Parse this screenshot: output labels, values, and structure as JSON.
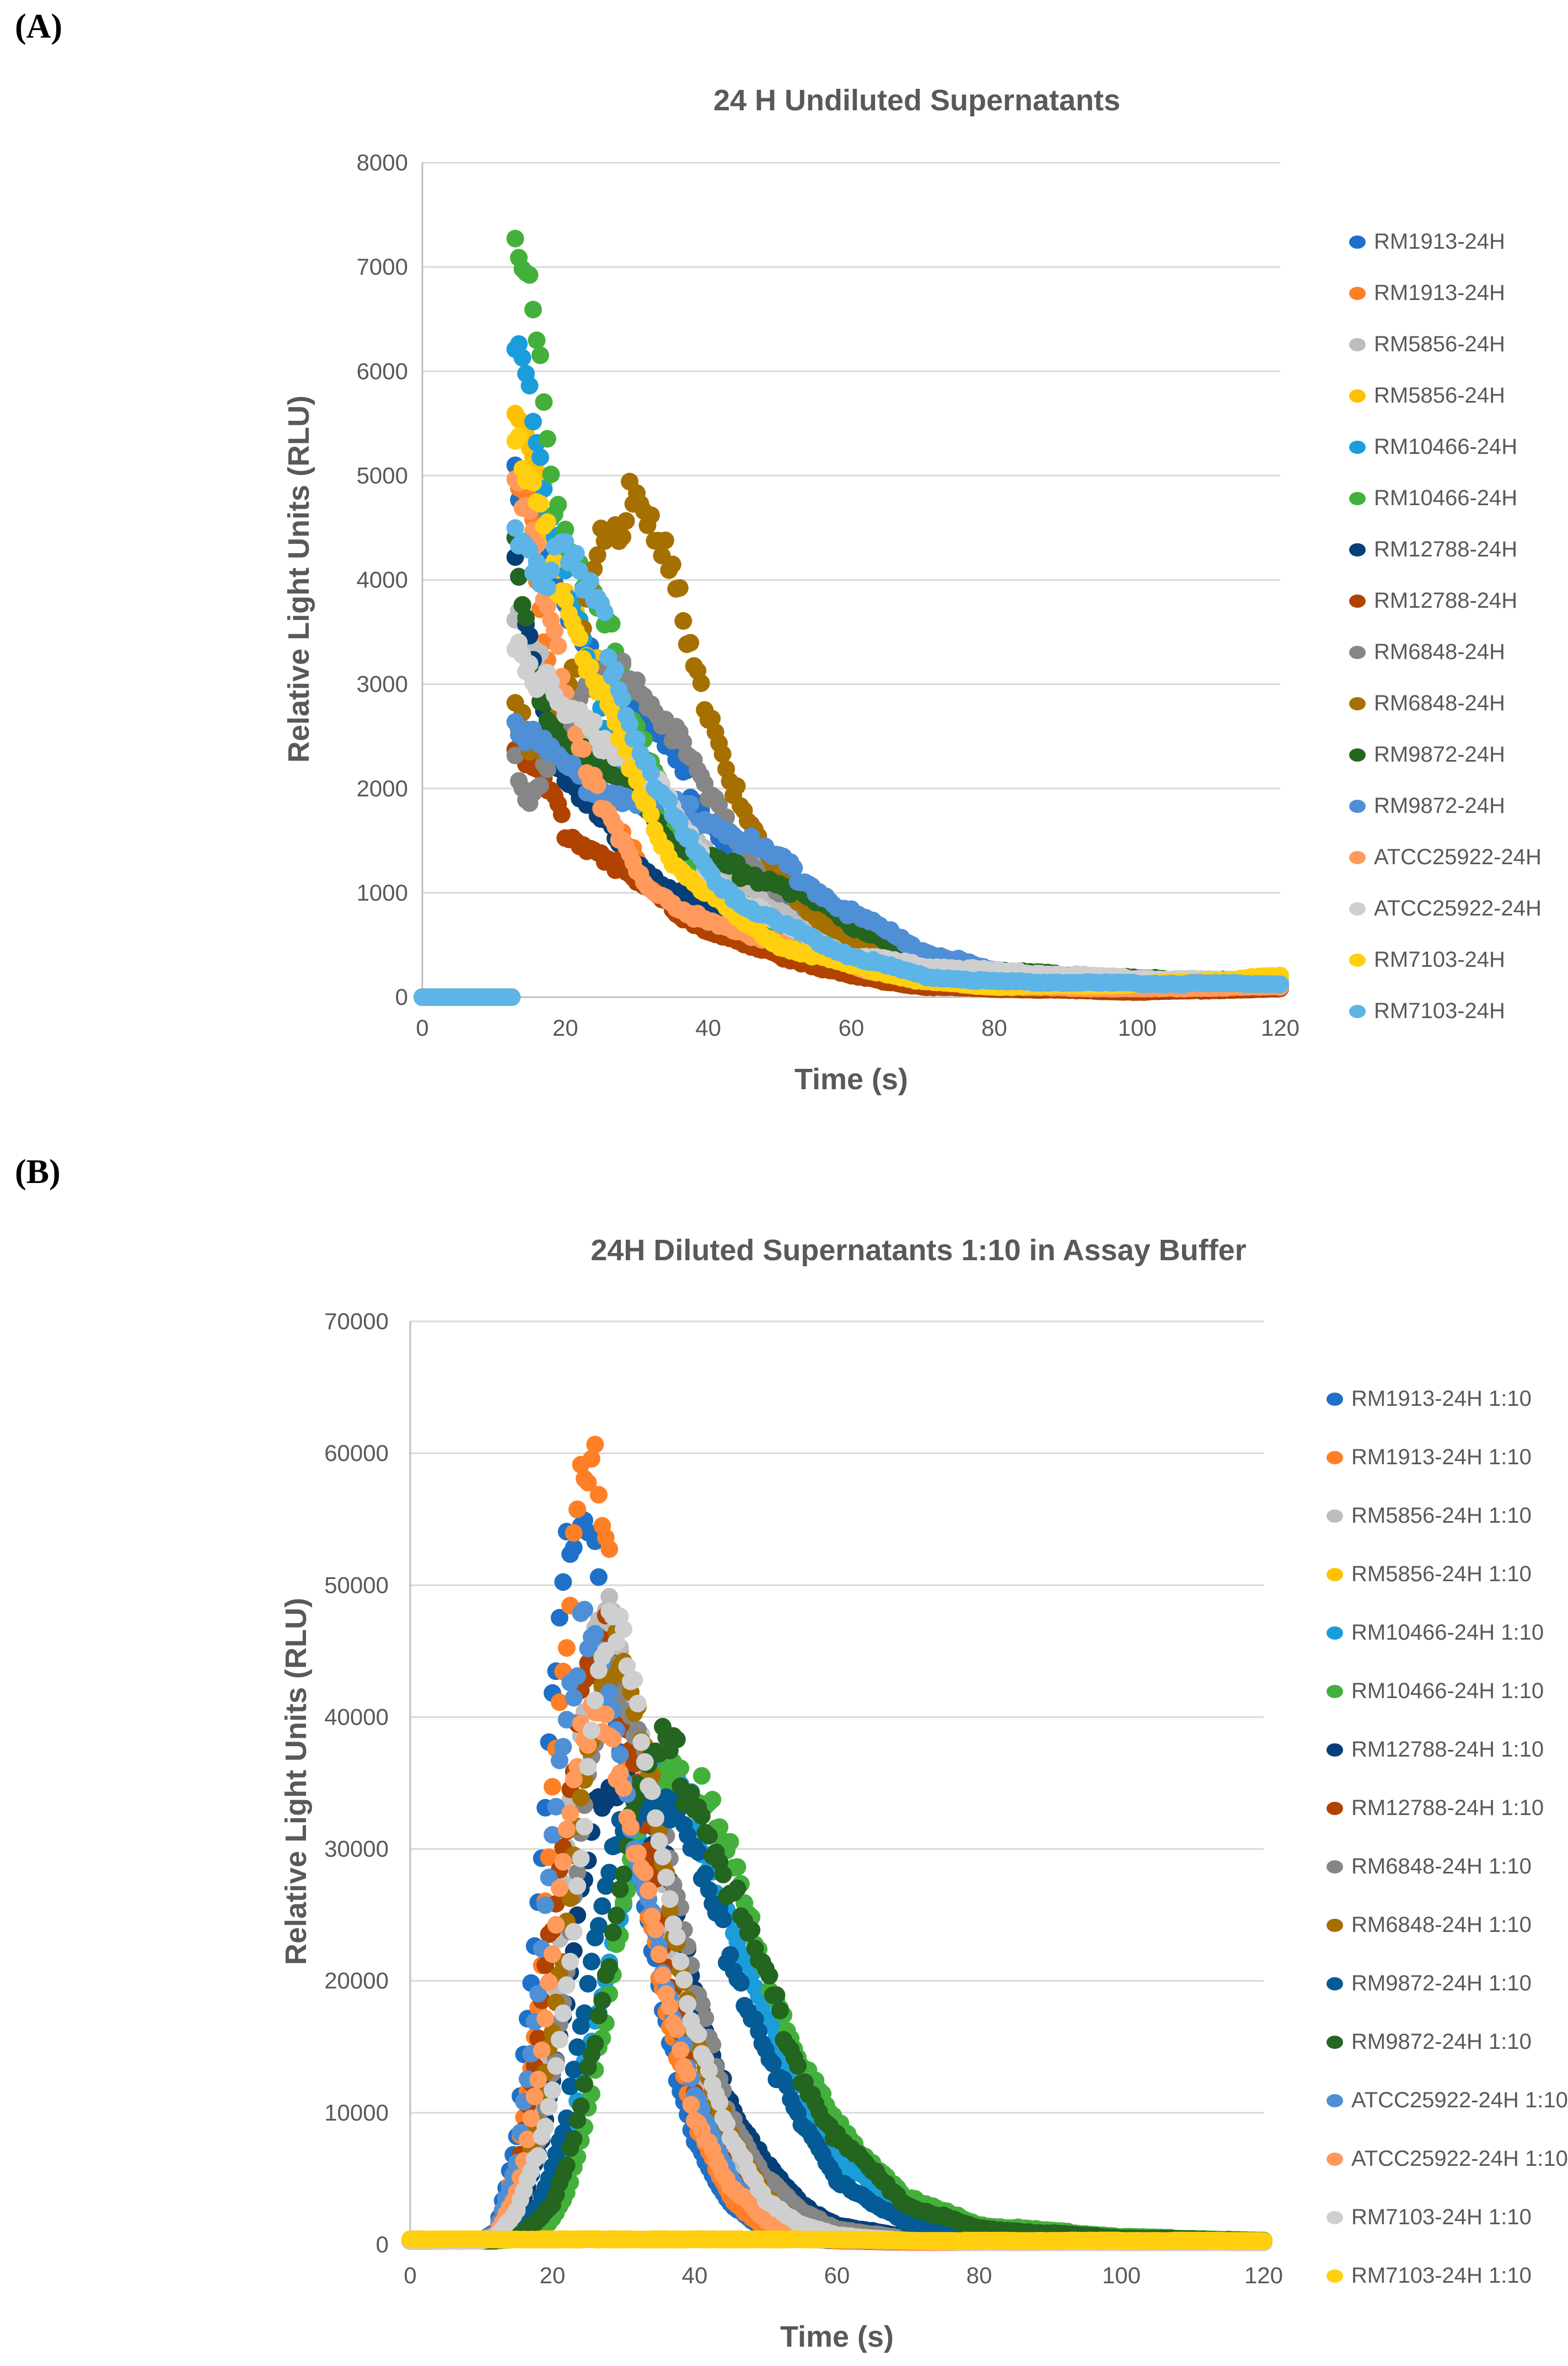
{
  "chart_data": [
    {
      "panel_label": "(A)",
      "type": "scatter",
      "title": "24 H Undiluted Supernatants",
      "xlabel": "Time (s)",
      "ylabel": "Relative Light Units (RLU)",
      "xlim": [
        0,
        120
      ],
      "ylim": [
        0,
        8000
      ],
      "xticks": [
        0,
        20,
        40,
        60,
        80,
        100,
        120
      ],
      "yticks": [
        0,
        1000,
        2000,
        3000,
        4000,
        5000,
        6000,
        7000,
        8000
      ],
      "grid": "horizontal",
      "legend_position": "right",
      "x": [
        0,
        5,
        10,
        13,
        15,
        18,
        20,
        25,
        30,
        35,
        40,
        45,
        50,
        60,
        70,
        80,
        100,
        120
      ],
      "series": [
        {
          "name": "RM1913-24H",
          "color": "#1f70c8",
          "values": [
            0,
            0,
            0,
            5100,
            4700,
            4000,
            3600,
            3300,
            2700,
            2300,
            1700,
            1300,
            900,
            450,
            250,
            180,
            120,
            120
          ]
        },
        {
          "name": "RM1913-24H",
          "color": "#ff7f27",
          "values": [
            0,
            0,
            0,
            4850,
            4700,
            3000,
            2200,
            1800,
            1300,
            900,
            700,
            550,
            450,
            250,
            150,
            100,
            80,
            100
          ]
        },
        {
          "name": "RM5856-24H",
          "color": "#bdbdbd",
          "values": [
            0,
            0,
            0,
            3800,
            3500,
            2800,
            2500,
            2300,
            2200,
            1700,
            1400,
            1000,
            800,
            450,
            320,
            250,
            150,
            150
          ]
        },
        {
          "name": "RM5856-24H",
          "color": "#ffc000",
          "values": [
            0,
            0,
            0,
            5550,
            5200,
            4600,
            4100,
            3000,
            2200,
            1400,
            900,
            650,
            500,
            250,
            120,
            80,
            60,
            150
          ]
        },
        {
          "name": "RM10466-24H",
          "color": "#1b9ddb",
          "values": [
            0,
            0,
            0,
            6600,
            6100,
            4500,
            3900,
            2700,
            2000,
            1400,
            1000,
            800,
            650,
            350,
            200,
            150,
            120,
            120
          ]
        },
        {
          "name": "RM10466-24H",
          "color": "#44b03c",
          "values": [
            0,
            0,
            0,
            7050,
            6650,
            5000,
            4500,
            3800,
            2500,
            1700,
            1100,
            850,
            650,
            350,
            200,
            150,
            120,
            120
          ]
        },
        {
          "name": "RM12788-24H",
          "color": "#063f78",
          "values": [
            0,
            0,
            0,
            4250,
            3500,
            2400,
            2000,
            1700,
            1300,
            1000,
            800,
            650,
            500,
            300,
            150,
            100,
            80,
            100
          ]
        },
        {
          "name": "RM12788-24H",
          "color": "#b04300",
          "values": [
            0,
            0,
            0,
            2300,
            2200,
            1900,
            1600,
            1400,
            1100,
            850,
            650,
            500,
            400,
            200,
            100,
            80,
            50,
            80
          ]
        },
        {
          "name": "RM6848-24H",
          "color": "#868686",
          "values": [
            0,
            0,
            0,
            2300,
            1900,
            2400,
            2600,
            3000,
            3100,
            2600,
            1900,
            1400,
            1000,
            500,
            300,
            200,
            150,
            150
          ]
        },
        {
          "name": "RM6848-24H",
          "color": "#a67000",
          "values": [
            0,
            0,
            0,
            2850,
            2300,
            2400,
            2800,
            4600,
            4700,
            4000,
            2800,
            1700,
            1100,
            500,
            300,
            200,
            150,
            150
          ]
        },
        {
          "name": "RM9872-24H",
          "color": "#24651f",
          "values": [
            0,
            0,
            0,
            4200,
            3200,
            2700,
            2500,
            2100,
            2000,
            1500,
            1300,
            1200,
            1100,
            700,
            400,
            250,
            180,
            150
          ]
        },
        {
          "name": "RM9872-24H",
          "color": "#4f8fd6",
          "values": [
            0,
            0,
            0,
            2700,
            2500,
            2300,
            2200,
            2000,
            1900,
            1800,
            1700,
            1500,
            1300,
            800,
            450,
            250,
            150,
            150
          ]
        },
        {
          "name": "ATCC25922-24H",
          "color": "#ff9a5c",
          "values": [
            0,
            0,
            0,
            4800,
            4500,
            3800,
            3000,
            1800,
            1200,
            900,
            700,
            600,
            550,
            300,
            150,
            100,
            80,
            100
          ]
        },
        {
          "name": "ATCC25922-24H",
          "color": "#cfcfcf",
          "values": [
            0,
            0,
            0,
            3500,
            3200,
            2900,
            2700,
            2500,
            2300,
            1800,
            1200,
            900,
            700,
            400,
            300,
            250,
            180,
            150
          ]
        },
        {
          "name": "RM7103-24H",
          "color": "#ffcf10",
          "values": [
            0,
            0,
            0,
            5300,
            4800,
            4300,
            3900,
            2900,
            2000,
            1300,
            1000,
            700,
            500,
            300,
            150,
            100,
            120,
            200
          ]
        },
        {
          "name": "RM7103-24H",
          "color": "#5db4e6",
          "values": [
            0,
            0,
            0,
            4700,
            4300,
            4100,
            4200,
            3600,
            2500,
            1700,
            1200,
            900,
            700,
            400,
            200,
            150,
            130,
            130
          ]
        }
      ]
    },
    {
      "panel_label": "(B)",
      "type": "scatter",
      "title": "24H Diluted Supernatants 1:10 in Assay Buffer",
      "xlabel": "Time (s)",
      "ylabel": "Relative Light Units (RLU)",
      "xlim": [
        0,
        120
      ],
      "ylim": [
        0,
        70000
      ],
      "xticks": [
        0,
        20,
        40,
        60,
        80,
        100,
        120
      ],
      "yticks": [
        0,
        10000,
        20000,
        30000,
        40000,
        50000,
        60000,
        70000
      ],
      "grid": "horizontal",
      "legend_position": "right",
      "x": [
        0,
        10,
        12,
        15,
        18,
        20,
        22,
        24,
        26,
        28,
        30,
        33,
        36,
        40,
        45,
        50,
        55,
        60,
        70,
        80,
        100,
        120
      ],
      "series": [
        {
          "name": "RM1913-24H 1:10",
          "color": "#1f70c8",
          "values": [
            300,
            300,
            1000,
            8000,
            25000,
            40000,
            52000,
            57500,
            55000,
            45000,
            37000,
            25000,
            16000,
            8000,
            3000,
            1000,
            500,
            300,
            200,
            200,
            200,
            200
          ]
        },
        {
          "name": "RM1913-24H 1:10",
          "color": "#ff7f27",
          "values": [
            300,
            300,
            800,
            6000,
            18000,
            35000,
            48000,
            56000,
            58000,
            50000,
            40000,
            28000,
            18000,
            9000,
            3500,
            1200,
            600,
            300,
            200,
            200,
            200,
            200
          ]
        },
        {
          "name": "RM5856-24H 1:10",
          "color": "#bdbdbd",
          "values": [
            300,
            300,
            500,
            3000,
            8000,
            15000,
            30000,
            40000,
            48000,
            50500,
            46000,
            35000,
            24000,
            13000,
            6000,
            2500,
            1000,
            500,
            300,
            200,
            200,
            200
          ]
        },
        {
          "name": "RM5856-24H 1:10",
          "color": "#ffc000",
          "values": [
            400,
            400,
            400,
            400,
            400,
            400,
            400,
            400,
            400,
            400,
            400,
            400,
            400,
            400,
            400,
            400,
            400,
            400,
            300,
            300,
            300,
            300
          ]
        },
        {
          "name": "RM10466-24H 1:10",
          "color": "#1b9ddb",
          "values": [
            300,
            300,
            300,
            500,
            1500,
            3000,
            6000,
            12000,
            17000,
            22000,
            27000,
            33000,
            35500,
            32000,
            25000,
            17000,
            11000,
            6500,
            2500,
            1000,
            500,
            300
          ]
        },
        {
          "name": "RM10466-24H 1:10",
          "color": "#44b03c",
          "values": [
            300,
            300,
            300,
            400,
            1000,
            2000,
            4000,
            8000,
            13000,
            18000,
            25000,
            33000,
            37500,
            35000,
            29000,
            21000,
            14000,
            9000,
            3500,
            1500,
            600,
            300
          ]
        },
        {
          "name": "RM12788-24H 1:10",
          "color": "#063f78",
          "values": [
            300,
            300,
            500,
            2000,
            7000,
            12000,
            18000,
            26000,
            32000,
            35000,
            36000,
            34000,
            28000,
            19000,
            11000,
            6000,
            3000,
            1500,
            500,
            300,
            200,
            200
          ]
        },
        {
          "name": "RM12788-24H 1:10",
          "color": "#b04300",
          "values": [
            300,
            300,
            700,
            5000,
            15000,
            25000,
            33000,
            43000,
            46500,
            45000,
            40000,
            31000,
            22000,
            12000,
            5000,
            2000,
            800,
            400,
            200,
            200,
            200,
            200
          ]
        },
        {
          "name": "RM6848-24H 1:10",
          "color": "#868686",
          "values": [
            300,
            300,
            600,
            3000,
            8000,
            13000,
            20000,
            30000,
            38000,
            42000,
            43000,
            39000,
            30000,
            19000,
            10000,
            5000,
            2500,
            1200,
            400,
            300,
            200,
            200
          ]
        },
        {
          "name": "RM6848-24H 1:10",
          "color": "#a67000",
          "values": [
            300,
            300,
            600,
            3500,
            9000,
            16000,
            25000,
            35000,
            42000,
            45000,
            43000,
            37000,
            27000,
            16000,
            8000,
            3500,
            1500,
            700,
            300,
            200,
            200,
            200
          ]
        },
        {
          "name": "RM9872-24H 1:10",
          "color": "#045b96",
          "values": [
            300,
            300,
            300,
            1000,
            3000,
            6000,
            10000,
            16000,
            22000,
            28000,
            32000,
            34500,
            34000,
            29000,
            22000,
            15000,
            9000,
            5000,
            1500,
            700,
            300,
            200
          ]
        },
        {
          "name": "RM9872-24H 1:10",
          "color": "#24651f",
          "values": [
            300,
            300,
            300,
            600,
            1800,
            3000,
            6000,
            11000,
            16000,
            22000,
            29000,
            35000,
            37500,
            34000,
            27000,
            20000,
            13000,
            8000,
            3000,
            1200,
            500,
            300
          ]
        },
        {
          "name": "ATCC25922-24H 1:10",
          "color": "#4f8fd6",
          "values": [
            300,
            300,
            800,
            6000,
            20000,
            32000,
            42000,
            46000,
            44000,
            40000,
            35000,
            28000,
            20000,
            11000,
            5000,
            2000,
            900,
            400,
            200,
            200,
            200,
            200
          ]
        },
        {
          "name": "ATCC25922-24H 1:10",
          "color": "#ff9a5c",
          "values": [
            300,
            300,
            700,
            4000,
            12000,
            22000,
            30000,
            38000,
            42000,
            40000,
            35000,
            27000,
            19000,
            10000,
            4500,
            1800,
            800,
            400,
            200,
            200,
            200,
            200
          ]
        },
        {
          "name": "RM7103-24H 1:10",
          "color": "#cfcfcf",
          "values": [
            300,
            300,
            500,
            2500,
            7000,
            12000,
            20000,
            30000,
            40000,
            46000,
            45000,
            38000,
            28000,
            16000,
            8000,
            3500,
            1500,
            700,
            300,
            200,
            200,
            200
          ]
        },
        {
          "name": "RM7103-24H 1:10",
          "color": "#ffcf10",
          "values": [
            400,
            400,
            400,
            400,
            400,
            400,
            400,
            400,
            400,
            400,
            400,
            400,
            400,
            400,
            400,
            400,
            400,
            400,
            300,
            300,
            300,
            300
          ]
        }
      ]
    }
  ]
}
